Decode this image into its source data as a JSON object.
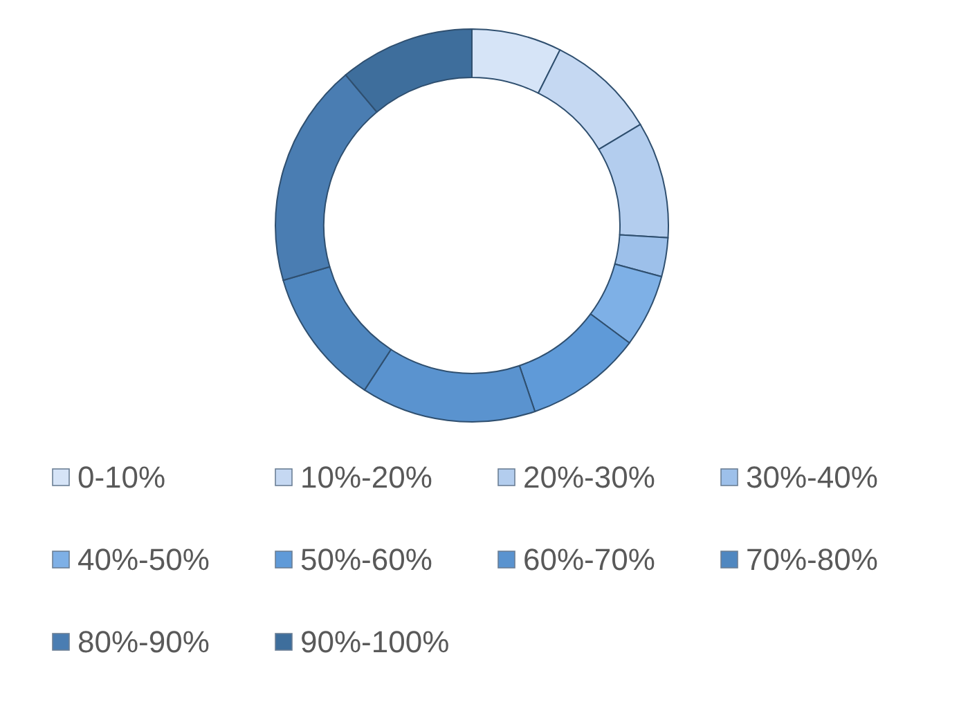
{
  "chart_data": {
    "type": "donut",
    "categories": [
      "0-10%",
      "10%-20%",
      "20%-30%",
      "30%-40%",
      "40%-50%",
      "50%-60%",
      "60%-70%",
      "70%-80%",
      "80%-90%",
      "90%-100%"
    ],
    "values": [
      7.4,
      9,
      9.6,
      3.2,
      6,
      9.6,
      14.4,
      11.3,
      18.4,
      11.1
    ],
    "colors": [
      "#d6e4f7",
      "#c5d8f2",
      "#b3cdee",
      "#9dc0ea",
      "#7eb0e6",
      "#5f9ad8",
      "#5a93cf",
      "#4f87c0",
      "#4a7db2",
      "#3e6e9c"
    ],
    "legend": "bottom"
  }
}
